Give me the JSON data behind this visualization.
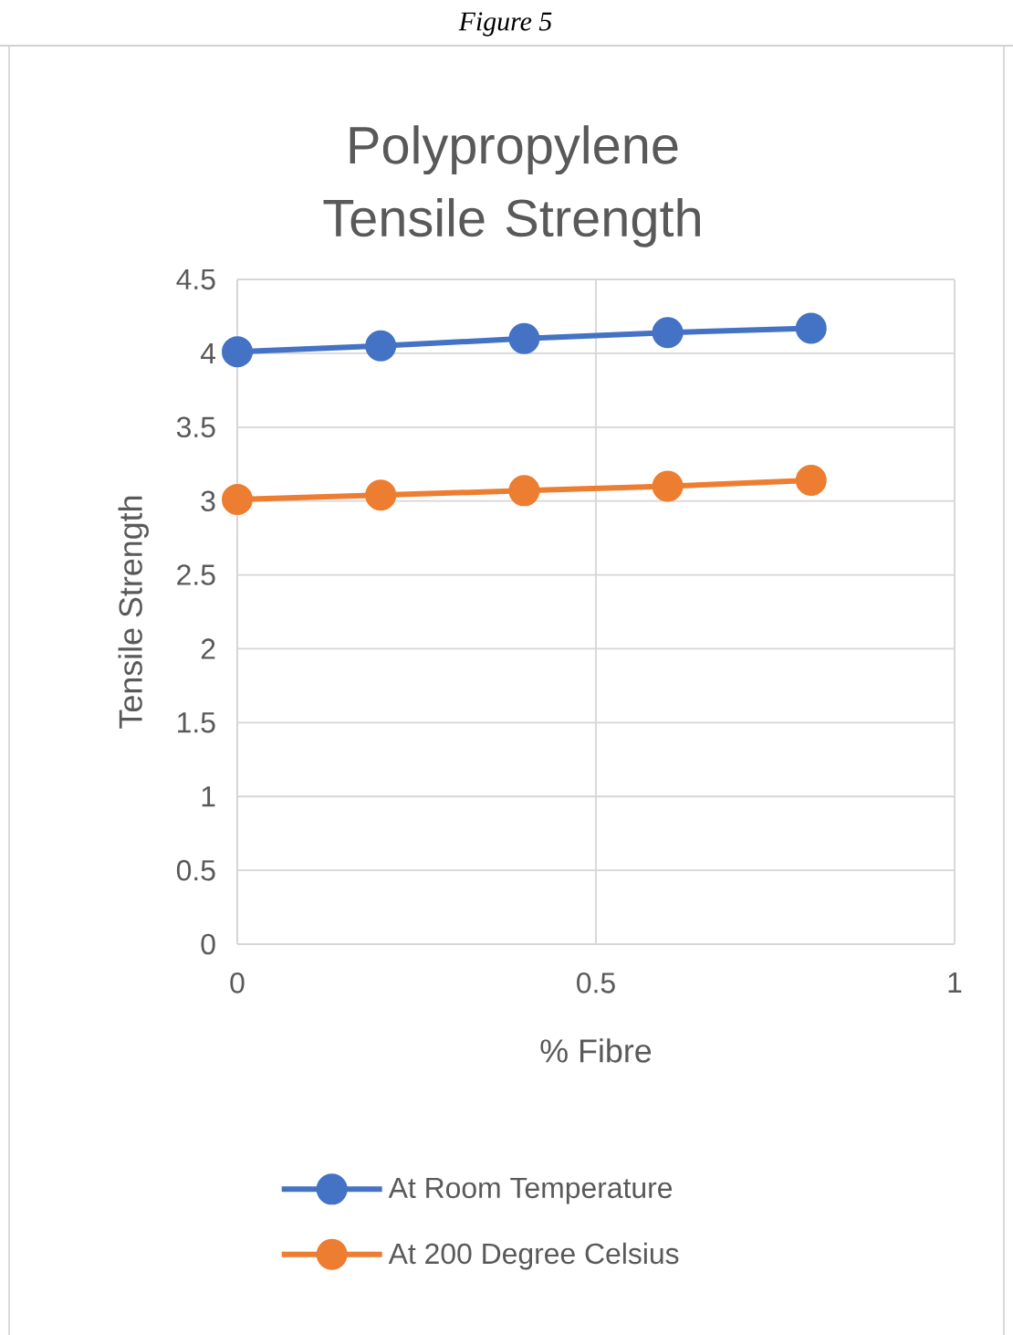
{
  "chart_data": {
    "type": "line",
    "title": "Polypropylene Tensile Strength",
    "xlabel": "% Fibre",
    "ylabel": "Tensile Strength",
    "annotations": [
      "Figure 5"
    ],
    "x": [
      0,
      0.2,
      0.4,
      0.6,
      0.8
    ],
    "series": [
      {
        "name": "At Room Temperature",
        "color": "#4472c4",
        "values": [
          4.01,
          4.05,
          4.1,
          4.14,
          4.17
        ]
      },
      {
        "name": "At 200 Degree Celsius",
        "color": "#ed7d31",
        "values": [
          3.01,
          3.04,
          3.07,
          3.1,
          3.14
        ]
      }
    ],
    "xlim": [
      0,
      1
    ],
    "xticks": [
      0,
      0.5,
      1
    ],
    "ylim": [
      0,
      4.5
    ],
    "yticks": [
      0,
      0.5,
      1,
      1.5,
      2,
      2.5,
      3,
      3.5,
      4,
      4.5
    ],
    "grid": true,
    "legend": "bottom",
    "marker": "circle",
    "line_style": "solid"
  }
}
